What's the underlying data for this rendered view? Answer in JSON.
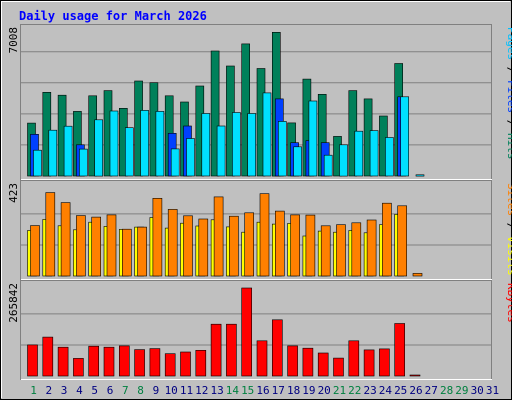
{
  "chart_data": {
    "type": "bar",
    "title": "Daily usage for March 2026",
    "background_color": "#c0c0c0",
    "days": [
      "1",
      "2",
      "3",
      "4",
      "5",
      "6",
      "7",
      "8",
      "9",
      "10",
      "11",
      "12",
      "13",
      "14",
      "15",
      "16",
      "17",
      "18",
      "19",
      "20",
      "21",
      "22",
      "23",
      "24",
      "25",
      "26",
      "27",
      "28",
      "29",
      "30",
      "31"
    ],
    "weekend_days": [
      "1",
      "7",
      "8",
      "14",
      "15",
      "21",
      "22",
      "28",
      "29"
    ],
    "weekday_color": "#000080",
    "weekend_color": "#008040",
    "panels": [
      {
        "name": "hits-files-pages",
        "ymax_label": "7008",
        "ymax": 7008,
        "side_labels": [
          {
            "text": "Pages",
            "color": "#00c0ff"
          },
          {
            "text": " / ",
            "color": "#000000"
          },
          {
            "text": "Files",
            "color": "#0040ff"
          },
          {
            "text": " / ",
            "color": "#000000"
          },
          {
            "text": "Hits",
            "color": "#00805a"
          }
        ],
        "series": [
          {
            "name": "Hits",
            "color": "#00805a",
            "values": [
              2540,
              4020,
              3880,
              3100,
              3850,
              4100,
              3250,
              4560,
              4480,
              3850,
              3550,
              4320,
              6000,
              5280,
              6340,
              5160,
              6900,
              2550,
              4650,
              3920,
              1900,
              4100,
              3700,
              2880,
              5400,
              0,
              0,
              0,
              0,
              0,
              0
            ]
          },
          {
            "name": "Files",
            "color": "#0040ff",
            "values": [
              2000,
              0,
              0,
              1500,
              0,
              0,
              0,
              0,
              0,
              2050,
              2400,
              0,
              0,
              0,
              0,
              0,
              3700,
              1600,
              1700,
              1600,
              0,
              0,
              0,
              0,
              3800,
              0,
              0,
              0,
              0,
              0,
              0
            ]
          },
          {
            "name": "Pages",
            "color": "#00e0ff",
            "values": [
              1240,
              2200,
              2390,
              1290,
              2700,
              3120,
              2320,
              3150,
              3100,
              1300,
              1800,
              3000,
              2400,
              3050,
              3000,
              3990,
              2620,
              1400,
              3600,
              1000,
              1500,
              2150,
              2180,
              1850,
              3800,
              60,
              0,
              0,
              0,
              0,
              0
            ]
          }
        ]
      },
      {
        "name": "visits-sites",
        "ymax_label": "423",
        "ymax": 423,
        "side_labels": [
          {
            "text": "Sites",
            "color": "#ff8000"
          },
          {
            "text": " / ",
            "color": "#000000"
          },
          {
            "text": "Visits",
            "color": "#ffff00"
          }
        ],
        "series": [
          {
            "name": "Visits",
            "color": "#ffff00",
            "values": [
              214,
              266,
              236,
              217,
              253,
              233,
              219,
              230,
              275,
              225,
              248,
              235,
              264,
              231,
              206,
              253,
              244,
              247,
              188,
              211,
              206,
              214,
              203,
              241,
              290,
              0,
              0,
              0,
              0,
              0,
              0
            ]
          },
          {
            "name": "Sites",
            "color": "#ff8000",
            "values": [
              237,
              392,
              345,
              284,
              277,
              287,
              220,
              230,
              365,
              313,
              283,
              268,
              372,
              281,
              297,
              387,
              305,
              287,
              286,
              236,
              241,
              250,
              263,
              342,
              330,
              12,
              0,
              0,
              0,
              0,
              0
            ]
          }
        ]
      },
      {
        "name": "kbytes",
        "ymax_label": "265842",
        "ymax": 265842,
        "side_labels": [
          {
            "text": "KBytes",
            "color": "#ff0000"
          }
        ],
        "series": [
          {
            "name": "KBytes",
            "color": "#ff0000",
            "values": [
              92000,
              115000,
              85000,
              52000,
              88000,
              85000,
              89000,
              78000,
              81000,
              66000,
              71000,
              76000,
              153000,
              153000,
              260000,
              104000,
              166000,
              89000,
              82000,
              68000,
              53000,
              104000,
              77000,
              80000,
              155000,
              3000,
              0,
              0,
              0,
              0,
              0
            ]
          }
        ]
      }
    ]
  }
}
